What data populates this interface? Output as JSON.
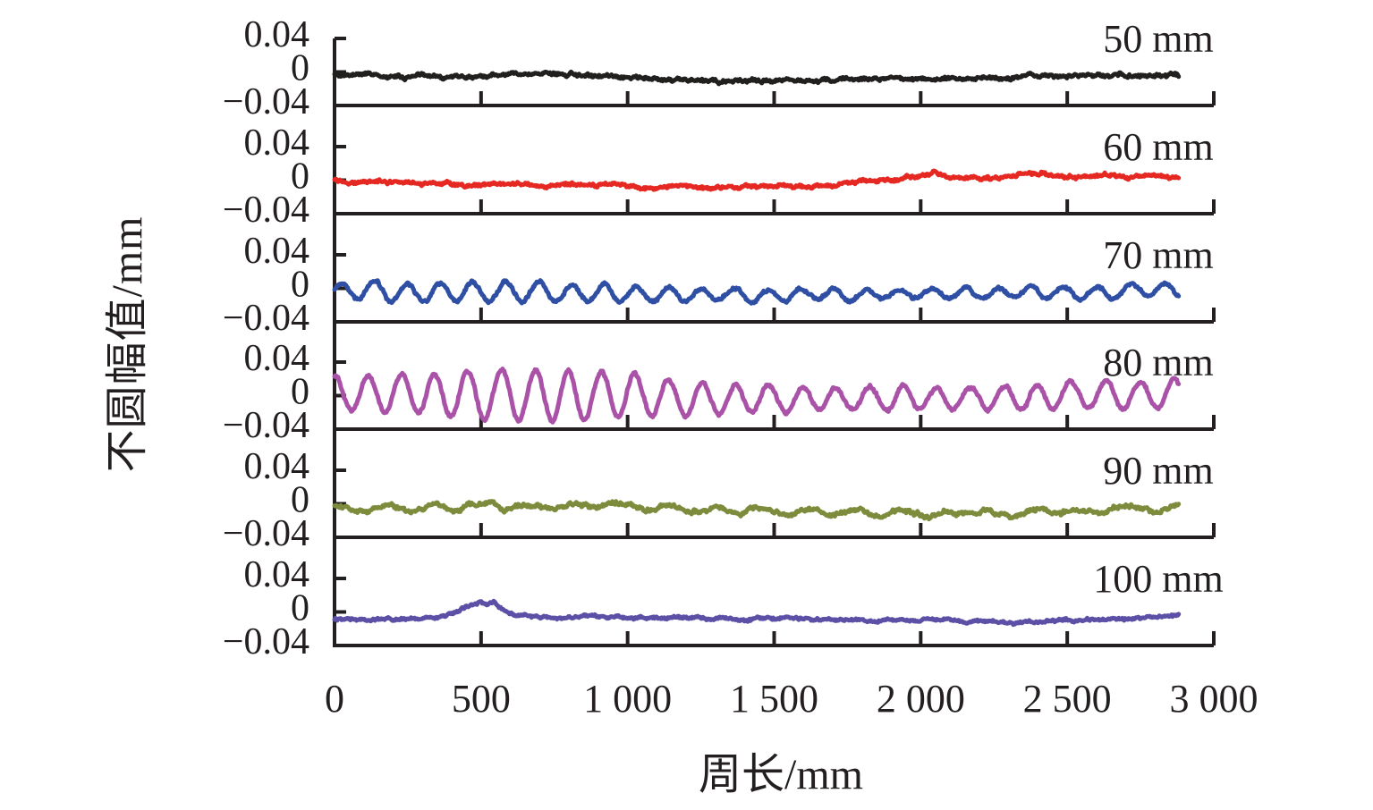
{
  "figure": {
    "background": "#ffffff",
    "text_color": "#231f20",
    "axis_color": "#231f20"
  },
  "chart_data": {
    "type": "line",
    "title": "",
    "xlabel": "周长/mm",
    "ylabel": "不圆幅值/mm",
    "xlim": [
      0,
      3000
    ],
    "x_ticks": [
      0,
      500,
      1000,
      1500,
      2000,
      2500,
      3000
    ],
    "x_tick_labels": [
      "0",
      "500",
      "1 000",
      "1 500",
      "2 000",
      "2 500",
      "3 000"
    ],
    "panel_ylim": [
      -0.04,
      0.04
    ],
    "y_ticks": [
      0.04,
      0,
      -0.04
    ],
    "y_tick_labels": [
      "0.04",
      "0",
      "−0.04"
    ],
    "x_unit": "mm",
    "y_unit": "mm",
    "x_end": 2880,
    "grid": false,
    "legend_position": "top-right-inside-each-panel",
    "panels": [
      {
        "label": "50 mm",
        "color": "#221f1f",
        "seed": 11,
        "noise": 0.0022,
        "jitter": 0.0012,
        "period": 0,
        "phase": 0,
        "phase_jitter": 0,
        "amp": [
          [
            0,
            0
          ]
        ],
        "base": [
          [
            0,
            -0.003
          ],
          [
            250,
            -0.006
          ],
          [
            500,
            -0.004
          ],
          [
            650,
            -0.001
          ],
          [
            800,
            -0.004
          ],
          [
            1050,
            -0.007
          ],
          [
            1300,
            -0.01
          ],
          [
            1500,
            -0.011
          ],
          [
            1700,
            -0.01
          ],
          [
            1900,
            -0.008
          ],
          [
            2100,
            -0.008
          ],
          [
            2300,
            -0.006
          ],
          [
            2500,
            -0.005
          ],
          [
            2700,
            -0.003
          ],
          [
            2880,
            -0.002
          ]
        ]
      },
      {
        "label": "60 mm",
        "color": "#e52822",
        "seed": 22,
        "noise": 0.002,
        "jitter": 0.0012,
        "period": 0,
        "phase": 0,
        "phase_jitter": 0,
        "amp": [
          [
            0,
            0
          ]
        ],
        "base": [
          [
            0,
            0.001
          ],
          [
            150,
            -0.002
          ],
          [
            300,
            -0.005
          ],
          [
            500,
            -0.006
          ],
          [
            700,
            -0.007
          ],
          [
            900,
            -0.006
          ],
          [
            1100,
            -0.007
          ],
          [
            1300,
            -0.008
          ],
          [
            1500,
            -0.007
          ],
          [
            1600,
            -0.009
          ],
          [
            1750,
            -0.004
          ],
          [
            1850,
            0.0
          ],
          [
            1950,
            0.002
          ],
          [
            2040,
            0.009
          ],
          [
            2090,
            0.004
          ],
          [
            2200,
            0.002
          ],
          [
            2320,
            0.004
          ],
          [
            2420,
            0.009
          ],
          [
            2500,
            0.004
          ],
          [
            2600,
            0.005
          ],
          [
            2700,
            0.003
          ],
          [
            2800,
            0.004
          ],
          [
            2880,
            0.002
          ]
        ]
      },
      {
        "label": "70 mm",
        "color": "#2e4fa4",
        "seed": 33,
        "noise": 0.0018,
        "jitter": 0.0012,
        "period": 113,
        "phase": 0.2,
        "phase_jitter": 0.06,
        "amp": [
          [
            0,
            0.01
          ],
          [
            200,
            0.011
          ],
          [
            700,
            0.012
          ],
          [
            1000,
            0.01
          ],
          [
            1250,
            0.008
          ],
          [
            1500,
            0.007
          ],
          [
            1800,
            0.006
          ],
          [
            2100,
            0.006
          ],
          [
            2400,
            0.007
          ],
          [
            2880,
            0.008
          ]
        ],
        "base": [
          [
            0,
            -0.004
          ],
          [
            800,
            -0.005
          ],
          [
            1400,
            -0.008
          ],
          [
            2000,
            -0.007
          ],
          [
            2500,
            -0.005
          ],
          [
            2880,
            -0.002
          ]
        ]
      },
      {
        "label": "80 mm",
        "color": "#a952a7",
        "seed": 44,
        "noise": 0.002,
        "jitter": 0.0012,
        "period": 114,
        "phase": 1.57,
        "phase_jitter": 0.06,
        "amp": [
          [
            0,
            0.02
          ],
          [
            300,
            0.024
          ],
          [
            500,
            0.029
          ],
          [
            750,
            0.031
          ],
          [
            950,
            0.027
          ],
          [
            1150,
            0.021
          ],
          [
            1400,
            0.016
          ],
          [
            1700,
            0.014
          ],
          [
            2000,
            0.013
          ],
          [
            2300,
            0.014
          ],
          [
            2600,
            0.016
          ],
          [
            2880,
            0.018
          ]
        ],
        "base": [
          [
            0,
            0.003
          ],
          [
            700,
            0.001
          ],
          [
            1200,
            -0.003
          ],
          [
            1700,
            -0.004
          ],
          [
            2200,
            -0.002
          ],
          [
            2600,
            0.0
          ],
          [
            2880,
            0.002
          ]
        ]
      },
      {
        "label": "90 mm",
        "color": "#7d8b3c",
        "seed": 55,
        "noise": 0.003,
        "jitter": 0.0014,
        "period": 160,
        "phase": 0.8,
        "phase_jitter": 0.08,
        "amp": [
          [
            0,
            0.003
          ],
          [
            2880,
            0.003
          ]
        ],
        "base": [
          [
            0,
            -0.005
          ],
          [
            300,
            -0.006
          ],
          [
            500,
            -0.002
          ],
          [
            800,
            -0.003
          ],
          [
            950,
            -0.001
          ],
          [
            1150,
            -0.006
          ],
          [
            1300,
            -0.005
          ],
          [
            1500,
            -0.01
          ],
          [
            1700,
            -0.012
          ],
          [
            1900,
            -0.01
          ],
          [
            2100,
            -0.012
          ],
          [
            2400,
            -0.01
          ],
          [
            2600,
            -0.008
          ],
          [
            2880,
            -0.004
          ]
        ]
      },
      {
        "label": "100 mm",
        "color": "#5b4fa6",
        "seed": 66,
        "noise": 0.0016,
        "jitter": 0.001,
        "period": 0,
        "phase": 0,
        "phase_jitter": 0,
        "amp": [
          [
            0,
            0
          ]
        ],
        "base": [
          [
            0,
            -0.008
          ],
          [
            200,
            -0.008
          ],
          [
            320,
            -0.006
          ],
          [
            400,
            -0.001
          ],
          [
            440,
            0.004
          ],
          [
            470,
            0.007
          ],
          [
            500,
            0.011
          ],
          [
            520,
            0.007
          ],
          [
            545,
            0.009
          ],
          [
            570,
            0.002
          ],
          [
            620,
            -0.004
          ],
          [
            750,
            -0.006
          ],
          [
            950,
            -0.006
          ],
          [
            1150,
            -0.007
          ],
          [
            1350,
            -0.009
          ],
          [
            1600,
            -0.008
          ],
          [
            1850,
            -0.01
          ],
          [
            2050,
            -0.01
          ],
          [
            2250,
            -0.012
          ],
          [
            2450,
            -0.011
          ],
          [
            2650,
            -0.009
          ],
          [
            2880,
            -0.005
          ]
        ]
      }
    ]
  }
}
